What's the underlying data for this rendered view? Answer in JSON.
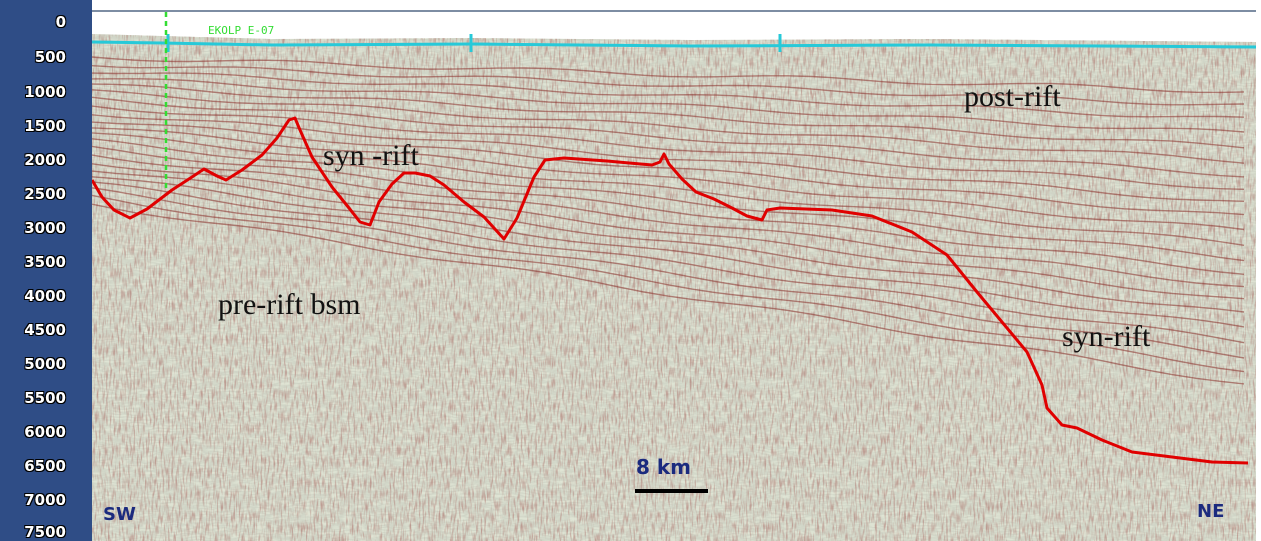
{
  "depth_axis": {
    "ticks": [
      "0",
      "500",
      "1000",
      "1500",
      "2000",
      "2500",
      "3000",
      "3500",
      "4000",
      "4500",
      "5000",
      "5500",
      "6000",
      "6500",
      "7000",
      "7500"
    ]
  },
  "well": {
    "label": "EKOLP E-07"
  },
  "units": {
    "post_rift": "post-rift",
    "syn_rift_upper": "syn -rift",
    "syn_rift_lower": "syn-rift",
    "pre_rift": "pre-rift bsm"
  },
  "orientation": {
    "left": "SW",
    "right": "NE"
  },
  "scale": {
    "label": "8 km"
  },
  "colors": {
    "axis_background": "#2f4d86",
    "basement_horizon": "#e00000",
    "seafloor": "#27c9d8",
    "well_marker": "#33dd33",
    "reflector": "#8a2f2a",
    "compass_text": "#1b2a7e"
  }
}
